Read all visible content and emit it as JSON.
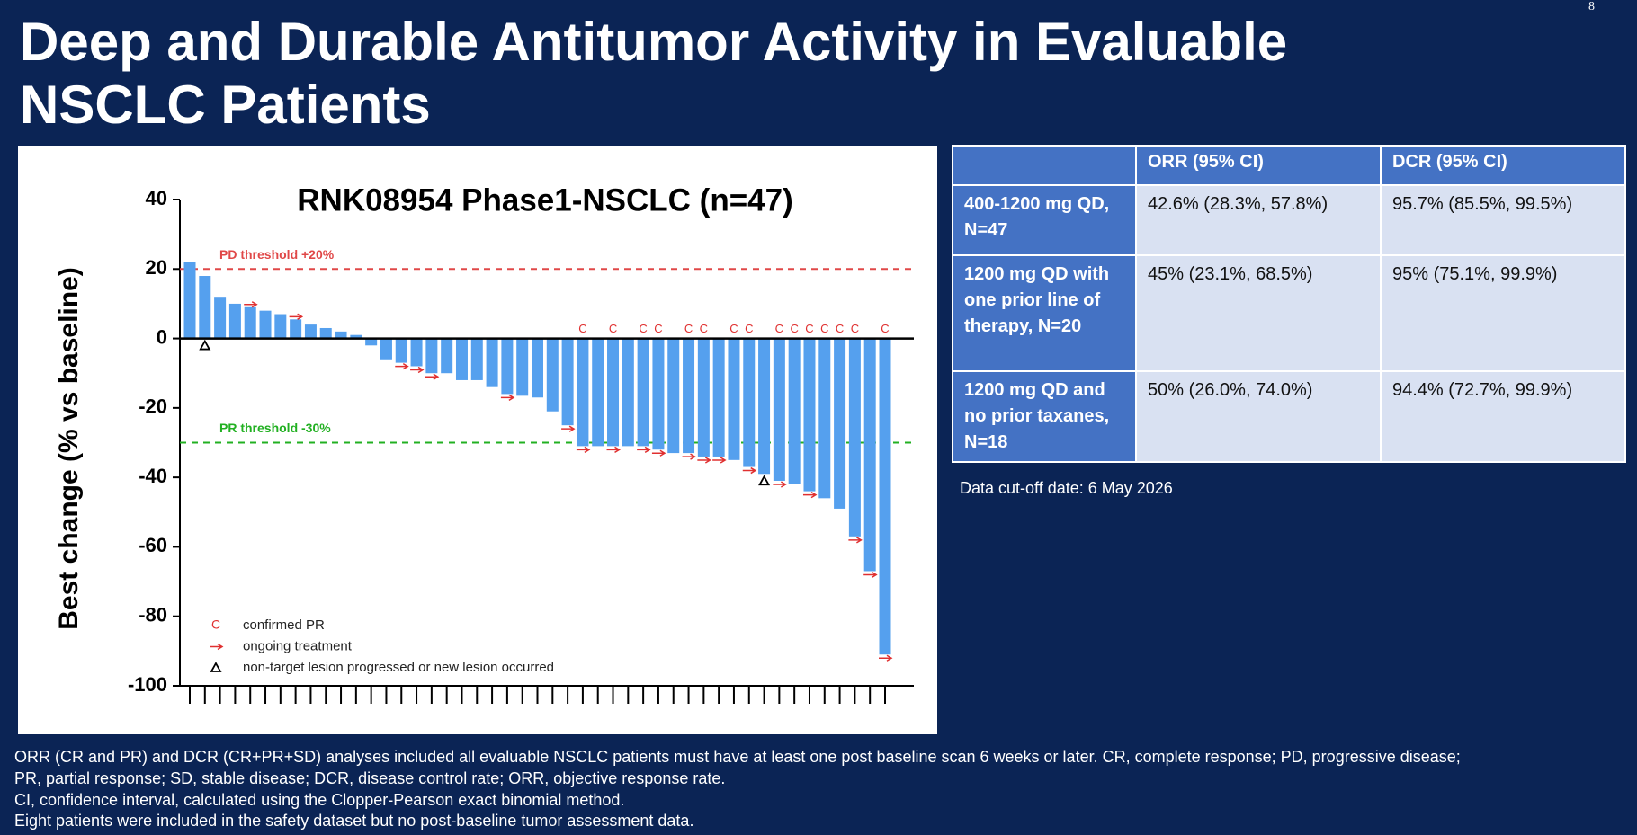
{
  "slide_title": [
    "Deep and Durable Antitumor Activity in Evaluable",
    "NSCLC Patients"
  ],
  "page_number": "8",
  "chart_data": {
    "type": "bar",
    "title": "RNK08954 Phase1-NSCLC (n=47)",
    "y_label": "Best change (% vs baseline)",
    "categories": [
      null,
      null,
      null,
      null,
      null,
      null,
      null,
      null,
      null,
      null,
      null,
      null,
      null,
      null,
      null,
      null,
      null,
      null,
      null,
      null,
      null,
      null,
      null,
      null,
      null,
      null,
      null,
      null,
      null,
      null,
      null,
      null,
      null,
      null,
      null,
      null,
      null,
      null,
      null,
      null,
      null,
      null,
      null,
      null,
      null,
      null,
      null
    ],
    "values": [
      22,
      18,
      12,
      10,
      9,
      8,
      7,
      5.5,
      4,
      3,
      2,
      1,
      -2,
      -6,
      -7,
      -8,
      -10,
      -10,
      -12,
      -12,
      -14,
      -16,
      -16.5,
      -17,
      -21,
      -25,
      -31,
      -31,
      -31,
      -31,
      -31,
      -32,
      -33,
      -33,
      -34,
      -34,
      -35,
      -37,
      -39,
      -41,
      -42,
      -44,
      -46,
      -49,
      -57,
      -67,
      -91
    ],
    "color": "#55a0ee",
    "ylim": [
      -100,
      40
    ],
    "yticks": [
      -100,
      -80,
      -60,
      -40,
      -20,
      0,
      20,
      40
    ],
    "grid": false,
    "reference_lines": [
      {
        "value": 20,
        "label": "PD threshold +20%",
        "color": "#e04848"
      },
      {
        "value": -30,
        "label": "PR threshold -30%",
        "color": "#22b022"
      }
    ],
    "markers": [
      {
        "name": "confirmed PR",
        "symbol": "C",
        "color": "#e03030",
        "patients": [
          26,
          28,
          30,
          31,
          33,
          34,
          36,
          37,
          39,
          40,
          41,
          42,
          43,
          44,
          46
        ]
      },
      {
        "name": "ongoing treatment",
        "shape": "arrow",
        "color": "#e03030",
        "patients": [
          4,
          7,
          14,
          15,
          16,
          21,
          25,
          26,
          28,
          30,
          31,
          33,
          34,
          35,
          37,
          39,
          41,
          44,
          45,
          46
        ]
      },
      {
        "name": "non-target lesion progressed or new lesion occurred",
        "shape": "triangle",
        "color": "#000000",
        "patients": [
          1,
          38
        ]
      }
    ]
  },
  "table": {
    "header": [
      "ORR (95% CI)",
      "DCR (95% CI)"
    ],
    "rows": [
      [
        "400-1200 mg QD, N=47",
        "42.6% (28.3%, 57.8%)",
        "95.7% (85.5%, 99.5%)"
      ],
      [
        "1200 mg QD with one prior line of therapy, N=20",
        "45% (23.1%, 68.5%)",
        "95% (75.1%, 99.9%)"
      ],
      [
        "1200 mg QD and no prior taxanes, N=18",
        "50% (26.0%, 74.0%)",
        "94.4% (72.7%, 99.9%)"
      ]
    ]
  },
  "cutoff_note": "Data cut-off date: 6 May 2026",
  "footnotes": [
    "ORR (CR and PR) and DCR (CR+PR+SD) analyses included all evaluable NSCLC patients must have at least one post baseline scan 6 weeks or later. CR, complete response; PD, progressive disease;",
    "PR, partial response; SD, stable disease; DCR, disease control rate; ORR, objective response rate.",
    "CI, confidence interval, calculated using the Clopper-Pearson exact binomial method.",
    "Eight patients were included in the safety dataset but no post-baseline tumor assessment data."
  ]
}
